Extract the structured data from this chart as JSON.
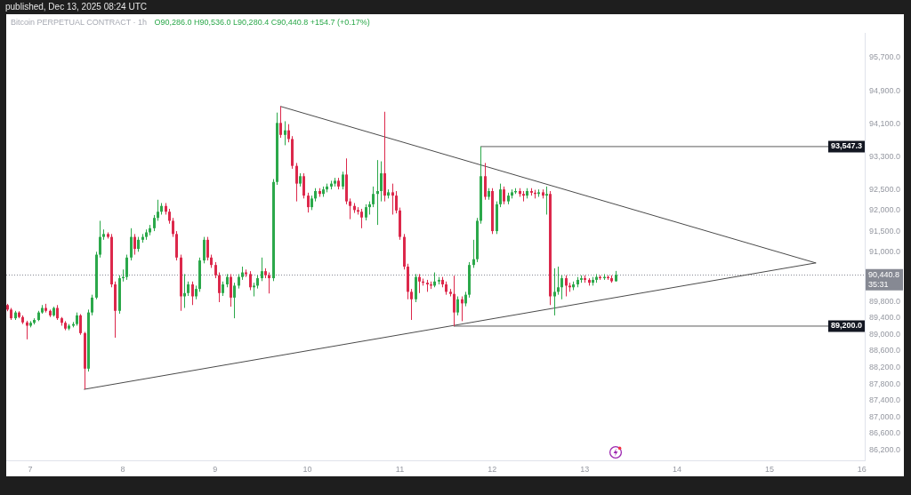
{
  "chart_data": {
    "type": "candlestick",
    "title": "Bitcoin PERPETUAL CONTRACT · 1h",
    "subtitle": "O90,286.0 H90,536.0 L90,280.4 C90,440.8 +154.7 (+0.17%)",
    "annotations": [
      "published, Dec 13, 2025 08:24 UTC"
    ],
    "xlim": [
      "2025-12-06T17:45",
      "2025-12-16T00:45"
    ],
    "xticks": [
      {
        "value": "2025-12-07",
        "label": "7"
      },
      {
        "value": "2025-12-08",
        "label": "8"
      },
      {
        "value": "2025-12-09",
        "label": "9"
      },
      {
        "value": "2025-12-10",
        "label": "10"
      },
      {
        "value": "2025-12-11",
        "label": "11"
      },
      {
        "value": "2025-12-12",
        "label": "12"
      },
      {
        "value": "2025-12-13",
        "label": "13"
      },
      {
        "value": "2025-12-14",
        "label": "14"
      },
      {
        "value": "2025-12-15",
        "label": "15"
      },
      {
        "value": "2025-12-16",
        "label": "16"
      }
    ],
    "ylim": [
      85950,
      96300
    ],
    "yticks": [
      {
        "value": 95700,
        "label": "95,700.0"
      },
      {
        "value": 94900,
        "label": "94,900.0"
      },
      {
        "value": 94100,
        "label": "94,100.0"
      },
      {
        "value": 93300,
        "label": "93,300.0"
      },
      {
        "value": 92500,
        "label": "92,500.0"
      },
      {
        "value": 92000,
        "label": "92,000.0"
      },
      {
        "value": 91500,
        "label": "91,500.0"
      },
      {
        "value": 91000,
        "label": "91,000.0"
      },
      {
        "value": 89800,
        "label": "89,800.0"
      },
      {
        "value": 89400,
        "label": "89,400.0"
      },
      {
        "value": 89000,
        "label": "89,000.0"
      },
      {
        "value": 88600,
        "label": "88,600.0"
      },
      {
        "value": 88200,
        "label": "88,200.0"
      },
      {
        "value": 87800,
        "label": "87,800.0"
      },
      {
        "value": 87400,
        "label": "87,400.0"
      },
      {
        "value": 87000,
        "label": "87,000.0"
      },
      {
        "value": 86600,
        "label": "86,600.0"
      },
      {
        "value": 86200,
        "label": "86,200.0"
      }
    ],
    "ref_lines": [
      {
        "axis": "y",
        "value": 90440.8,
        "label": "90,440.8\n35:31",
        "color": "#868993",
        "line_style": "dotted"
      }
    ],
    "series": [
      {
        "x": [
          "2025-12-06T18:00",
          "2025-12-06T19:00",
          "2025-12-06T20:00",
          "2025-12-06T21:00",
          "2025-12-06T22:00",
          "2025-12-06T23:00",
          "2025-12-07T00:00",
          "2025-12-07T01:00",
          "2025-12-07T02:00",
          "2025-12-07T03:00",
          "2025-12-07T04:00",
          "2025-12-07T05:00",
          "2025-12-07T06:00",
          "2025-12-07T07:00",
          "2025-12-07T08:00",
          "2025-12-07T09:00",
          "2025-12-07T10:00",
          "2025-12-07T11:00",
          "2025-12-07T12:00",
          "2025-12-07T13:00",
          "2025-12-07T14:00",
          "2025-12-07T15:00",
          "2025-12-07T16:00",
          "2025-12-07T17:00",
          "2025-12-07T18:00",
          "2025-12-07T19:00",
          "2025-12-07T20:00",
          "2025-12-07T21:00",
          "2025-12-07T22:00",
          "2025-12-07T23:00",
          "2025-12-08T00:00",
          "2025-12-08T01:00",
          "2025-12-08T02:00",
          "2025-12-08T03:00",
          "2025-12-08T04:00",
          "2025-12-08T05:00",
          "2025-12-08T06:00",
          "2025-12-08T07:00",
          "2025-12-08T08:00",
          "2025-12-08T09:00",
          "2025-12-08T10:00",
          "2025-12-08T11:00",
          "2025-12-08T12:00",
          "2025-12-08T13:00",
          "2025-12-08T14:00",
          "2025-12-08T15:00",
          "2025-12-08T16:00",
          "2025-12-08T17:00",
          "2025-12-08T18:00",
          "2025-12-08T19:00",
          "2025-12-08T20:00",
          "2025-12-08T21:00",
          "2025-12-08T22:00",
          "2025-12-08T23:00",
          "2025-12-09T00:00",
          "2025-12-09T01:00",
          "2025-12-09T02:00",
          "2025-12-09T03:00",
          "2025-12-09T04:00",
          "2025-12-09T05:00",
          "2025-12-09T06:00",
          "2025-12-09T07:00",
          "2025-12-09T08:00",
          "2025-12-09T09:00",
          "2025-12-09T10:00",
          "2025-12-09T11:00",
          "2025-12-09T12:00",
          "2025-12-09T13:00",
          "2025-12-09T14:00",
          "2025-12-09T15:00",
          "2025-12-09T16:00",
          "2025-12-09T17:00",
          "2025-12-09T18:00",
          "2025-12-09T19:00",
          "2025-12-09T20:00",
          "2025-12-09T21:00",
          "2025-12-09T22:00",
          "2025-12-09T23:00",
          "2025-12-10T00:00",
          "2025-12-10T01:00",
          "2025-12-10T02:00",
          "2025-12-10T03:00",
          "2025-12-10T04:00",
          "2025-12-10T05:00",
          "2025-12-10T06:00",
          "2025-12-10T07:00",
          "2025-12-10T08:00",
          "2025-12-10T09:00",
          "2025-12-10T10:00",
          "2025-12-10T11:00",
          "2025-12-10T12:00",
          "2025-12-10T13:00",
          "2025-12-10T14:00",
          "2025-12-10T15:00",
          "2025-12-10T16:00",
          "2025-12-10T17:00",
          "2025-12-10T18:00",
          "2025-12-10T19:00",
          "2025-12-10T20:00",
          "2025-12-10T21:00",
          "2025-12-10T22:00",
          "2025-12-10T23:00",
          "2025-12-11T00:00",
          "2025-12-11T01:00",
          "2025-12-11T02:00",
          "2025-12-11T03:00",
          "2025-12-11T04:00",
          "2025-12-11T05:00",
          "2025-12-11T06:00",
          "2025-12-11T07:00",
          "2025-12-11T08:00",
          "2025-12-11T09:00",
          "2025-12-11T10:00",
          "2025-12-11T11:00",
          "2025-12-11T12:00",
          "2025-12-11T13:00",
          "2025-12-11T14:00",
          "2025-12-11T15:00",
          "2025-12-11T16:00",
          "2025-12-11T17:00",
          "2025-12-11T18:00",
          "2025-12-11T19:00",
          "2025-12-11T20:00",
          "2025-12-11T21:00",
          "2025-12-11T22:00",
          "2025-12-11T23:00",
          "2025-12-12T00:00",
          "2025-12-12T01:00",
          "2025-12-12T02:00",
          "2025-12-12T03:00",
          "2025-12-12T04:00",
          "2025-12-12T05:00",
          "2025-12-12T06:00",
          "2025-12-12T07:00",
          "2025-12-12T08:00",
          "2025-12-12T09:00",
          "2025-12-12T10:00",
          "2025-12-12T11:00",
          "2025-12-12T12:00",
          "2025-12-12T13:00",
          "2025-12-12T14:00",
          "2025-12-12T15:00",
          "2025-12-12T16:00",
          "2025-12-12T17:00",
          "2025-12-12T18:00",
          "2025-12-12T19:00",
          "2025-12-12T20:00",
          "2025-12-12T21:00",
          "2025-12-12T22:00",
          "2025-12-12T23:00",
          "2025-12-13T00:00",
          "2025-12-13T01:00",
          "2025-12-13T02:00",
          "2025-12-13T03:00",
          "2025-12-13T04:00",
          "2025-12-13T05:00",
          "2025-12-13T06:00",
          "2025-12-13T07:00",
          "2025-12-13T08:00"
        ],
        "ohlc": [
          [
            89710,
            89740,
            89560,
            89600
          ],
          [
            89600,
            89640,
            89350,
            89390
          ],
          [
            89390,
            89570,
            89350,
            89530
          ],
          [
            89530,
            89560,
            89390,
            89420
          ],
          [
            89420,
            89460,
            89250,
            89290
          ],
          [
            89290,
            89330,
            88880,
            89210
          ],
          [
            89210,
            89320,
            89170,
            89280
          ],
          [
            89280,
            89390,
            89240,
            89350
          ],
          [
            89350,
            89570,
            89320,
            89530
          ],
          [
            89530,
            89710,
            89500,
            89640
          ],
          [
            89640,
            89740,
            89530,
            89570
          ],
          [
            89570,
            89600,
            89420,
            89460
          ],
          [
            89460,
            89670,
            89430,
            89640
          ],
          [
            89640,
            89710,
            89350,
            89390
          ],
          [
            89390,
            89420,
            89210,
            89280
          ],
          [
            89280,
            89320,
            89100,
            89140
          ],
          [
            89140,
            89250,
            89100,
            89210
          ],
          [
            89210,
            89300,
            89170,
            89250
          ],
          [
            89250,
            89530,
            89210,
            89460
          ],
          [
            89460,
            89490,
            88990,
            89030
          ],
          [
            89030,
            89060,
            87670,
            88170
          ],
          [
            88170,
            89600,
            88100,
            89530
          ],
          [
            89530,
            89960,
            89460,
            89890
          ],
          [
            89890,
            91000,
            89850,
            90930
          ],
          [
            90930,
            91750,
            90860,
            91360
          ],
          [
            91360,
            91540,
            91290,
            91430
          ],
          [
            91430,
            91470,
            91320,
            91360
          ],
          [
            91360,
            91430,
            90140,
            90210
          ],
          [
            90210,
            90280,
            88920,
            89570
          ],
          [
            89570,
            90430,
            89500,
            90360
          ],
          [
            90360,
            90570,
            90280,
            90390
          ],
          [
            90390,
            90930,
            90320,
            90860
          ],
          [
            90860,
            91570,
            90790,
            91360
          ],
          [
            91360,
            91430,
            90930,
            91070
          ],
          [
            91070,
            91360,
            91000,
            91290
          ],
          [
            91290,
            91430,
            91220,
            91360
          ],
          [
            91360,
            91540,
            91290,
            91470
          ],
          [
            91470,
            91650,
            91400,
            91570
          ],
          [
            91570,
            91890,
            91500,
            91820
          ],
          [
            91820,
            92260,
            91750,
            91970
          ],
          [
            91970,
            92180,
            91900,
            92110
          ],
          [
            92110,
            92180,
            91900,
            91970
          ],
          [
            91970,
            92040,
            91680,
            91750
          ],
          [
            91750,
            91820,
            91360,
            91430
          ],
          [
            91430,
            91500,
            90790,
            90860
          ],
          [
            90860,
            90930,
            89570,
            89920
          ],
          [
            89920,
            90460,
            89640,
            90000
          ],
          [
            90000,
            90280,
            89930,
            90210
          ],
          [
            90210,
            90280,
            89710,
            89920
          ],
          [
            89920,
            90180,
            89850,
            90100
          ],
          [
            90100,
            90860,
            90030,
            90790
          ],
          [
            90790,
            91360,
            90720,
            91290
          ],
          [
            91290,
            91360,
            90790,
            90860
          ],
          [
            90860,
            90930,
            90610,
            90680
          ],
          [
            90680,
            90750,
            90360,
            90430
          ],
          [
            90430,
            90500,
            89780,
            90000
          ],
          [
            90000,
            90280,
            89930,
            90210
          ],
          [
            90210,
            90460,
            90140,
            90390
          ],
          [
            90390,
            90460,
            89670,
            89890
          ],
          [
            89890,
            90250,
            89390,
            90180
          ],
          [
            90180,
            90460,
            90110,
            90390
          ],
          [
            90390,
            90640,
            90320,
            90500
          ],
          [
            90500,
            90570,
            90390,
            90460
          ],
          [
            90460,
            90530,
            90070,
            90140
          ],
          [
            90140,
            90250,
            89920,
            90180
          ],
          [
            90180,
            90430,
            90110,
            90360
          ],
          [
            90360,
            90860,
            90290,
            90530
          ],
          [
            90530,
            90600,
            90360,
            90430
          ],
          [
            90430,
            90500,
            89990,
            90360
          ],
          [
            90360,
            92760,
            90290,
            92690
          ],
          [
            92690,
            94370,
            92620,
            94120
          ],
          [
            94120,
            94520,
            93760,
            93830
          ],
          [
            93830,
            94160,
            93580,
            93940
          ],
          [
            93940,
            94090,
            93650,
            93730
          ],
          [
            93730,
            93800,
            93010,
            93080
          ],
          [
            93080,
            93150,
            92220,
            92650
          ],
          [
            92650,
            92900,
            92580,
            92830
          ],
          [
            92830,
            92900,
            92290,
            92360
          ],
          [
            92360,
            92430,
            91950,
            92080
          ],
          [
            92080,
            92360,
            92010,
            92290
          ],
          [
            92290,
            92540,
            92220,
            92470
          ],
          [
            92470,
            92540,
            92330,
            92400
          ],
          [
            92400,
            92580,
            92330,
            92510
          ],
          [
            92510,
            92650,
            92440,
            92580
          ],
          [
            92580,
            92720,
            92510,
            92650
          ],
          [
            92650,
            92790,
            92580,
            92720
          ],
          [
            92720,
            92790,
            92510,
            92580
          ],
          [
            92580,
            92940,
            92510,
            92870
          ],
          [
            92870,
            93260,
            92150,
            92220
          ],
          [
            92220,
            92290,
            91790,
            92110
          ],
          [
            92110,
            92180,
            91940,
            92010
          ],
          [
            92010,
            92080,
            91900,
            91970
          ],
          [
            91970,
            92040,
            91570,
            91830
          ],
          [
            91830,
            92150,
            91760,
            92080
          ],
          [
            92080,
            92220,
            91900,
            92150
          ],
          [
            92150,
            92580,
            92080,
            92400
          ],
          [
            92400,
            93220,
            91650,
            92470
          ],
          [
            92470,
            93190,
            92220,
            92900
          ],
          [
            92900,
            94390,
            92220,
            92360
          ],
          [
            92360,
            92510,
            92290,
            92440
          ],
          [
            92440,
            92650,
            91900,
            92360
          ],
          [
            92360,
            92470,
            91930,
            92000
          ],
          [
            92000,
            92070,
            91290,
            91360
          ],
          [
            91360,
            91430,
            90570,
            90640
          ],
          [
            90640,
            90710,
            89850,
            90030
          ],
          [
            90030,
            90100,
            89350,
            89850
          ],
          [
            89850,
            90460,
            89780,
            90390
          ],
          [
            90390,
            90460,
            90000,
            90280
          ],
          [
            90280,
            90350,
            90180,
            90250
          ],
          [
            90250,
            90320,
            90030,
            90210
          ],
          [
            90210,
            90280,
            90100,
            90180
          ],
          [
            90180,
            90500,
            90140,
            90280
          ],
          [
            90280,
            90390,
            90210,
            90320
          ],
          [
            90320,
            90390,
            90140,
            90210
          ],
          [
            90210,
            90280,
            89960,
            90030
          ],
          [
            90030,
            90100,
            89920,
            89980
          ],
          [
            89980,
            90420,
            89200,
            89530
          ],
          [
            89530,
            89920,
            89460,
            89850
          ],
          [
            89850,
            89920,
            89320,
            89750
          ],
          [
            89750,
            90030,
            89680,
            89960
          ],
          [
            89960,
            90750,
            89890,
            90680
          ],
          [
            90680,
            91290,
            90610,
            90820
          ],
          [
            90820,
            91820,
            90750,
            91750
          ],
          [
            91750,
            93547.3,
            91680,
            92830
          ],
          [
            92830,
            93150,
            92260,
            92330
          ],
          [
            92330,
            92540,
            92260,
            92470
          ],
          [
            92470,
            92540,
            91430,
            91500
          ],
          [
            91500,
            92220,
            91430,
            92150
          ],
          [
            92150,
            92650,
            92080,
            92510
          ],
          [
            92510,
            92580,
            92150,
            92220
          ],
          [
            92220,
            92430,
            92150,
            92360
          ],
          [
            92360,
            92510,
            92290,
            92440
          ],
          [
            92440,
            92540,
            92400,
            92470
          ],
          [
            92470,
            92540,
            92330,
            92400
          ],
          [
            92400,
            92470,
            92220,
            92360
          ],
          [
            92360,
            92540,
            92290,
            92470
          ],
          [
            92470,
            92540,
            92360,
            92430
          ],
          [
            92430,
            92500,
            92290,
            92400
          ],
          [
            92400,
            92510,
            92330,
            92440
          ],
          [
            92440,
            92510,
            92290,
            92360
          ],
          [
            92360,
            92580,
            91900,
            92400
          ],
          [
            92400,
            92470,
            89710,
            89920
          ],
          [
            89920,
            90600,
            89460,
            90030
          ],
          [
            90030,
            90640,
            89960,
            90140
          ],
          [
            90140,
            90430,
            89850,
            90360
          ],
          [
            90360,
            90430,
            89920,
            90180
          ],
          [
            90180,
            90250,
            90030,
            90140
          ],
          [
            90140,
            90280,
            90070,
            90210
          ],
          [
            90210,
            90390,
            90140,
            90320
          ],
          [
            90320,
            90430,
            90250,
            90360
          ],
          [
            90360,
            90430,
            90250,
            90320
          ],
          [
            90320,
            90360,
            90180,
            90250
          ],
          [
            90250,
            90390,
            90180,
            90320
          ],
          [
            90320,
            90460,
            90250,
            90390
          ],
          [
            90390,
            90430,
            90320,
            90360
          ],
          [
            90360,
            90460,
            90320,
            90390
          ],
          [
            90390,
            90430,
            90320,
            90360
          ],
          [
            90360,
            90430,
            90250,
            90286
          ],
          [
            90286,
            90536,
            90280.4,
            90440.8
          ]
        ],
        "colors": [
          "#dc284b",
          "#dc284b",
          "#2ba84a",
          "#dc284b",
          "#dc284b",
          "#dc284b",
          "#2ba84a",
          "#2ba84a",
          "#2ba84a",
          "#2ba84a",
          "#dc284b",
          "#dc284b",
          "#2ba84a",
          "#dc284b",
          "#dc284b",
          "#dc284b",
          "#2ba84a",
          "#2ba84a",
          "#2ba84a",
          "#dc284b",
          "#dc284b",
          "#2ba84a",
          "#2ba84a",
          "#2ba84a",
          "#2ba84a",
          "#2ba84a",
          "#dc284b",
          "#dc284b",
          "#dc284b",
          "#2ba84a",
          "#2ba84a",
          "#2ba84a",
          "#2ba84a",
          "#dc284b",
          "#2ba84a",
          "#2ba84a",
          "#2ba84a",
          "#2ba84a",
          "#2ba84a",
          "#2ba84a",
          "#2ba84a",
          "#dc284b",
          "#dc284b",
          "#dc284b",
          "#dc284b",
          "#dc284b",
          "#2ba84a",
          "#2ba84a",
          "#dc284b",
          "#2ba84a",
          "#2ba84a",
          "#2ba84a",
          "#dc284b",
          "#dc284b",
          "#dc284b",
          "#dc284b",
          "#2ba84a",
          "#2ba84a",
          "#dc284b",
          "#2ba84a",
          "#2ba84a",
          "#2ba84a",
          "#dc284b",
          "#dc284b",
          "#2ba84a",
          "#2ba84a",
          "#2ba84a",
          "#dc284b",
          "#dc284b",
          "#2ba84a",
          "#2ba84a",
          "#dc284b",
          "#2ba84a",
          "#dc284b",
          "#dc284b",
          "#dc284b",
          "#2ba84a",
          "#dc284b",
          "#dc284b",
          "#2ba84a",
          "#2ba84a",
          "#dc284b",
          "#2ba84a",
          "#2ba84a",
          "#2ba84a",
          "#2ba84a",
          "#dc284b",
          "#2ba84a",
          "#dc284b",
          "#dc284b",
          "#dc284b",
          "#dc284b",
          "#dc284b",
          "#2ba84a",
          "#2ba84a",
          "#2ba84a",
          "#2ba84a",
          "#2ba84a",
          "#dc284b",
          "#2ba84a",
          "#dc284b",
          "#dc284b",
          "#dc284b",
          "#dc284b",
          "#dc284b",
          "#dc284b",
          "#2ba84a",
          "#dc284b",
          "#dc284b",
          "#dc284b",
          "#dc284b",
          "#2ba84a",
          "#2ba84a",
          "#dc284b",
          "#dc284b",
          "#dc284b",
          "#dc284b",
          "#2ba84a",
          "#dc284b",
          "#2ba84a",
          "#2ba84a",
          "#2ba84a",
          "#2ba84a",
          "#2ba84a",
          "#dc284b",
          "#2ba84a",
          "#dc284b",
          "#2ba84a",
          "#2ba84a",
          "#dc284b",
          "#2ba84a",
          "#2ba84a",
          "#2ba84a",
          "#dc284b",
          "#dc284b",
          "#2ba84a",
          "#dc284b",
          "#dc284b",
          "#2ba84a",
          "#dc284b",
          "#2ba84a",
          "#dc284b",
          "#2ba84a",
          "#2ba84a",
          "#2ba84a",
          "#dc284b",
          "#dc284b",
          "#2ba84a",
          "#2ba84a",
          "#2ba84a",
          "#dc284b",
          "#dc284b",
          "#2ba84a",
          "#2ba84a",
          "#dc284b",
          "#2ba84a",
          "#dc284b",
          "#dc284b",
          "#2ba84a"
        ]
      },
      {
        "type": "line",
        "color": "#4a4a4a",
        "x": [
          "2025-12-09T17:00",
          "2025-12-15T12:00"
        ],
        "values": [
          94520,
          90730
        ]
      },
      {
        "type": "line",
        "color": "#4a4a4a",
        "x": [
          "2025-12-07T14:00",
          "2025-12-15T12:00"
        ],
        "values": [
          87670,
          90730
        ]
      },
      {
        "type": "line",
        "color": "#5a5a5a",
        "x": [
          "2025-12-11T21:00",
          "2025-12-16T00:45"
        ],
        "values": [
          93547.3,
          93547.3
        ],
        "value_labels": [
          null,
          "93,547.3"
        ]
      },
      {
        "type": "line",
        "color": "#5a5a5a",
        "x": [
          "2025-12-11T14:00",
          "2025-12-16T00:45"
        ],
        "values": [
          89200,
          89200
        ],
        "value_labels": [
          null,
          "89,200.0"
        ]
      }
    ]
  }
}
